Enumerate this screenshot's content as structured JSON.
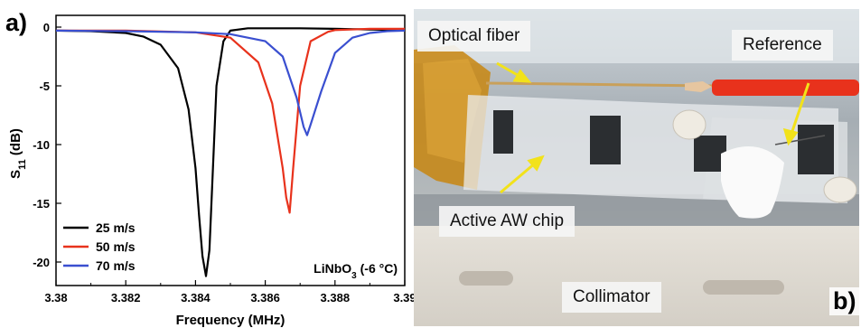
{
  "panel_a": {
    "label": "a)",
    "material_label": {
      "main": "LiNbO",
      "sub": "3",
      "rest": " (-6 °C)"
    }
  },
  "panel_b": {
    "label": "b)",
    "callouts": {
      "optical_fiber": "Optical fiber",
      "reference": "Reference",
      "active_chip": "Active AW chip",
      "collimator": "Collimator"
    },
    "colors": {
      "fiber_jacket": "#e8321c",
      "kapton_tape": "#c8860f",
      "callout_arrow": "#f2e21a"
    }
  },
  "chart_data": {
    "type": "line",
    "xlabel": "Frequency (MHz)",
    "ylabel": {
      "main": "S",
      "sub": "11",
      "rest": " (dB)"
    },
    "xlim": [
      3.38,
      3.39
    ],
    "ylim": [
      -22,
      1
    ],
    "xticks": [
      "3.38",
      "3.382",
      "3.384",
      "3.386",
      "3.388",
      "3.39"
    ],
    "yticks": [
      "0",
      "-5",
      "-10",
      "-15",
      "-20"
    ],
    "legend_position": "bottom-left",
    "series": [
      {
        "name": "25 m/s",
        "color": "#000000",
        "x": [
          3.38,
          3.381,
          3.382,
          3.3825,
          3.383,
          3.3835,
          3.3838,
          3.384,
          3.3841,
          3.3842,
          3.3843,
          3.3844,
          3.3845,
          3.3846,
          3.3848,
          3.385,
          3.3855,
          3.386,
          3.387,
          3.388,
          3.389,
          3.39
        ],
        "y": [
          -0.3,
          -0.35,
          -0.5,
          -0.8,
          -1.5,
          -3.5,
          -7,
          -12,
          -16,
          -19.5,
          -21.2,
          -19,
          -12,
          -5,
          -1.2,
          -0.3,
          -0.1,
          -0.1,
          -0.1,
          -0.15,
          -0.2,
          -0.25
        ]
      },
      {
        "name": "50 m/s",
        "color": "#e8321c",
        "x": [
          3.38,
          3.382,
          3.384,
          3.385,
          3.3858,
          3.3862,
          3.3865,
          3.3866,
          3.3867,
          3.3868,
          3.387,
          3.3873,
          3.3878,
          3.388,
          3.389,
          3.39
        ],
        "y": [
          -0.3,
          -0.3,
          -0.45,
          -0.9,
          -3,
          -6.5,
          -12,
          -14.5,
          -15.8,
          -12,
          -5,
          -1.2,
          -0.4,
          -0.25,
          -0.15,
          -0.15
        ]
      },
      {
        "name": "70 m/s",
        "color": "#3a4fd0",
        "x": [
          3.38,
          3.382,
          3.384,
          3.385,
          3.386,
          3.3865,
          3.3869,
          3.3871,
          3.3872,
          3.3873,
          3.3876,
          3.388,
          3.3885,
          3.389,
          3.3895,
          3.39
        ],
        "y": [
          -0.3,
          -0.35,
          -0.45,
          -0.6,
          -1.2,
          -2.5,
          -6,
          -8.5,
          -9.2,
          -8.3,
          -5.5,
          -2.2,
          -0.9,
          -0.5,
          -0.35,
          -0.3
        ]
      }
    ]
  }
}
